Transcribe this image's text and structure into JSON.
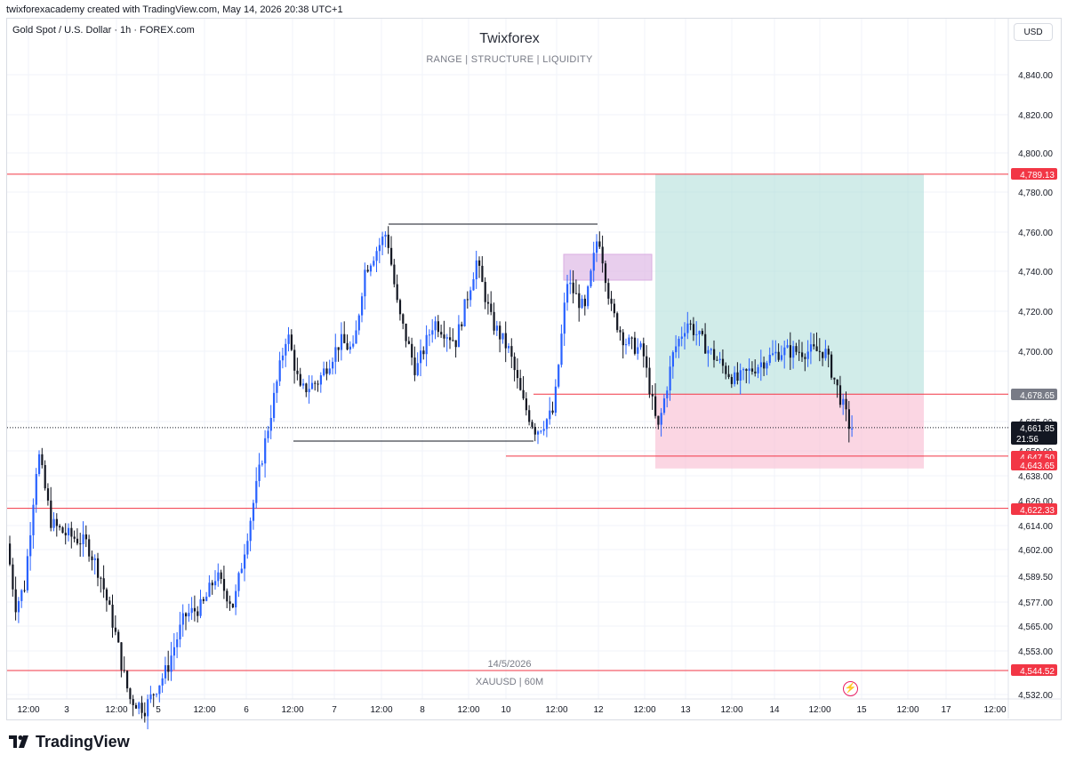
{
  "header": {
    "creator": "twixforexacademy created with TradingView.com, May 14, 2026 20:38 UTC+1"
  },
  "chart": {
    "symbol": "Gold Spot / U.S. Dollar · 1h · FOREX.com",
    "title": "Twixforex",
    "subtitle": "RANGE   |   STRUCTURE   |   LIQUIDITY",
    "currency": "USD",
    "date_label": "14/5/2026",
    "watermark": "XAUUSD | 60M"
  },
  "footer": {
    "brand": "TradingView"
  },
  "colors": {
    "up": "#2962ff",
    "down": "#131722",
    "level_line": "#f23645",
    "tp_zone": "#b2dfdb",
    "sl_zone": "#f8bbd0",
    "fvg_zone": "#e1bee7"
  },
  "chart_data": {
    "type": "candlestick",
    "title": "Twixforex",
    "subtitle": "RANGE | STRUCTURE | LIQUIDITY",
    "price_axis": {
      "ticks": [
        4840,
        4820,
        4800,
        4780,
        4760,
        4740,
        4720,
        4700,
        4665,
        4650,
        4638,
        4626,
        4614,
        4602,
        4589.5,
        4577,
        4565,
        4553,
        4544.52,
        4532
      ],
      "tick_labels": [
        "4,840.00",
        "4,820.00",
        "4,800.00",
        "4,780.00",
        "4,760.00",
        "4,740.00",
        "4,720.00",
        "4,700.00",
        "4,665.00",
        "4,650.00",
        "4,638.00",
        "4,626.00",
        "4,614.00",
        "4,602.00",
        "4,589.50",
        "4,577.00",
        "4,565.00",
        "4,553.00",
        "",
        "4,532.00"
      ]
    },
    "time_axis": {
      "labels": [
        "12:00",
        "3",
        "12:00",
        "5",
        "12:00",
        "6",
        "12:00",
        "7",
        "12:00",
        "8",
        "12:00",
        "10",
        "12:00",
        "12",
        "12:00",
        "13",
        "12:00",
        "14",
        "12:00",
        "15",
        "12:00",
        "17",
        "12:00"
      ]
    },
    "price_labels": [
      {
        "value": 4789.13,
        "label": "4,789.13",
        "kind": "level"
      },
      {
        "value": 4678.65,
        "label": "4,678.65",
        "kind": "entry"
      },
      {
        "value": 4661.85,
        "label": "4,661.85",
        "kind": "last",
        "countdown": "21:56"
      },
      {
        "value": 4647.5,
        "label": "4,647.50",
        "kind": "level"
      },
      {
        "value": 4643.65,
        "label": "4,643.65",
        "kind": "stop"
      },
      {
        "value": 4622.33,
        "label": "4,622.33",
        "kind": "level"
      },
      {
        "value": 4544.52,
        "label": "4,544.52",
        "kind": "level"
      }
    ],
    "horizontal_levels": [
      4789.13,
      4622.33,
      4544.52,
      4678.65,
      4647.5
    ],
    "range_lines": [
      {
        "price": 4764,
        "from_day": 4.6,
        "to_day": 6.6
      },
      {
        "price": 4655,
        "from_day": 3.0,
        "to_day": 5.9
      }
    ],
    "position": {
      "entry": 4678.65,
      "target": 4789.13,
      "stop": 4643.65
    },
    "last_price": 4661.85,
    "price_range": [
      4530,
      4849
    ]
  }
}
